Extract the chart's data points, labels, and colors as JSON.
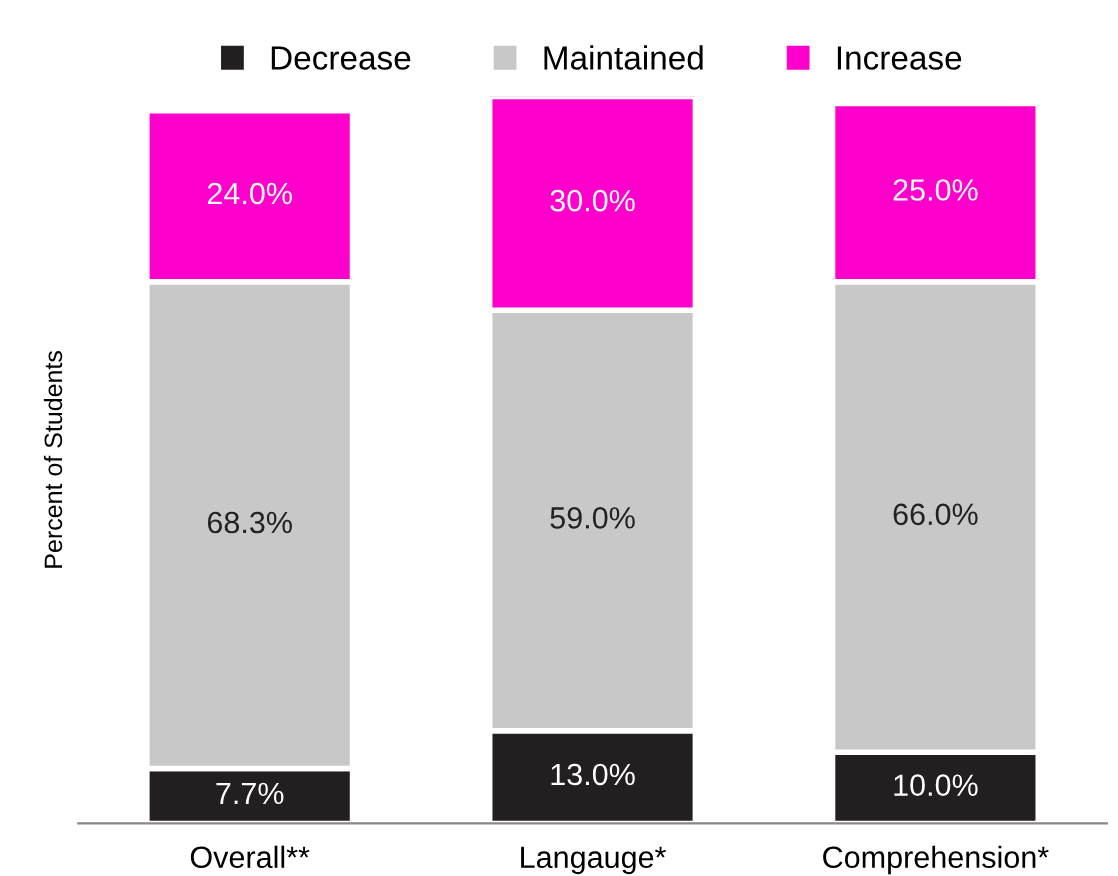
{
  "chart_data": {
    "type": "bar",
    "stacked": true,
    "ylabel": "Percent of Students",
    "categories": [
      "Overall**",
      "Langauge*",
      "Comprehension*"
    ],
    "series": [
      {
        "name": "Decrease",
        "color": "#231f20",
        "values": [
          7.7,
          13.0,
          10.0
        ],
        "value_labels": [
          "7.7%",
          "13.0%",
          "10.0%"
        ]
      },
      {
        "name": "Maintained",
        "color": "#c8c8c8",
        "values": [
          68.3,
          59.0,
          66.0
        ],
        "value_labels": [
          "68.3%",
          "59.0%",
          "66.0%"
        ]
      },
      {
        "name": "Increase",
        "color": "#ff00cc",
        "values": [
          24.0,
          30.0,
          25.0
        ],
        "value_labels": [
          "24.0%",
          "30.0%",
          "25.0%"
        ]
      }
    ],
    "legend": "top",
    "grid": false
  }
}
